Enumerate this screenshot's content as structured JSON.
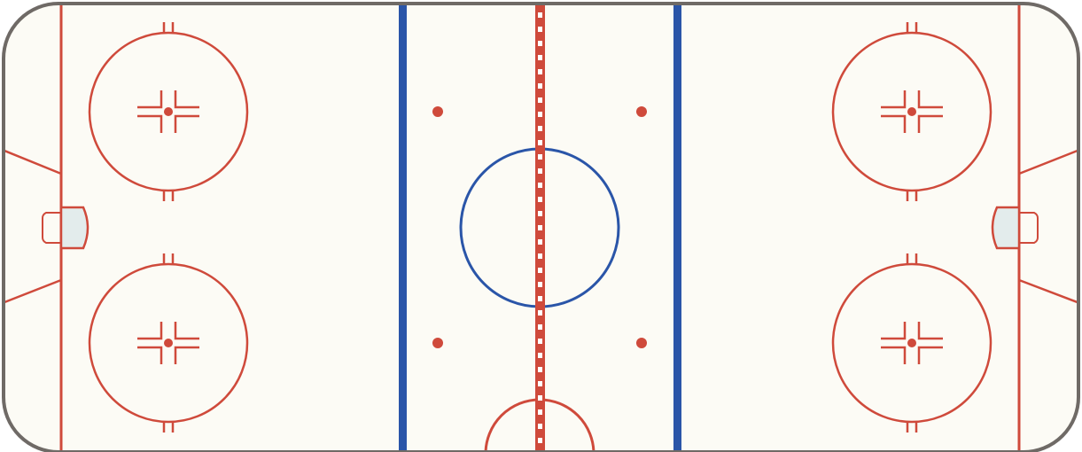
{
  "rink": {
    "colors": {
      "ice": "#fcfbf5",
      "boards": "#6f6a66",
      "red": "#cf4a3b",
      "blue": "#2a55a8",
      "crease": "#e3ecec",
      "center_dash": "#ffffff"
    },
    "elements": {
      "goal_lines": 2,
      "blue_lines": 2,
      "center_line": 1,
      "end_zone_faceoff_circles": 4,
      "center_circle": 1,
      "neutral_zone_dots": 4,
      "goal_creases": 2,
      "referee_crease": 1
    }
  }
}
